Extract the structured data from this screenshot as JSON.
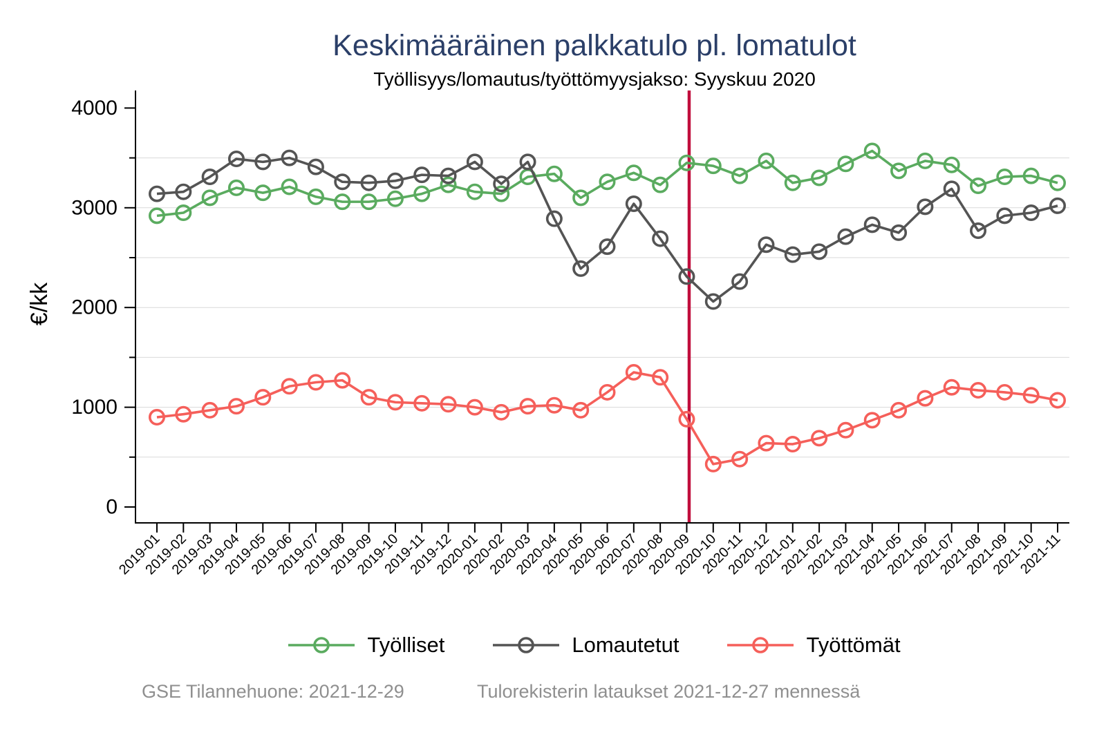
{
  "title": "Keskimääräinen palkkatulo pl. lomatulot",
  "subtitle": "Työllisyys/lomautus/työttömyysjakso: Syyskuu 2020",
  "footer": {
    "left": "GSE Tilannehuone: 2021-12-29",
    "right": "Tulorekisterin lataukset 2021-12-27 mennessä"
  },
  "chart_data": {
    "type": "line",
    "title": "Keskimääräinen palkkatulo pl. lomatulot",
    "subtitle": "Työllisyys/lomautus/työttömyysjakso: Syyskuu 2020",
    "ylabel": "€/kk",
    "xlabel": "",
    "ylim": [
      0,
      4000
    ],
    "ytick_major": [
      0,
      1000,
      2000,
      3000,
      4000
    ],
    "ytick_minor": [
      500,
      1500,
      2500,
      3500
    ],
    "grid": true,
    "gridline_values": [
      500,
      1000,
      1500,
      2000,
      2500,
      3000,
      3500
    ],
    "legend_position": "bottom",
    "x": [
      "2019-01",
      "2019-02",
      "2019-03",
      "2019-04",
      "2019-05",
      "2019-06",
      "2019-07",
      "2019-08",
      "2019-09",
      "2019-10",
      "2019-11",
      "2019-12",
      "2020-01",
      "2020-02",
      "2020-03",
      "2020-04",
      "2020-05",
      "2020-06",
      "2020-07",
      "2020-08",
      "2020-09",
      "2020-10",
      "2020-11",
      "2020-12",
      "2021-01",
      "2021-02",
      "2021-03",
      "2021-04",
      "2021-05",
      "2021-06",
      "2021-07",
      "2021-08",
      "2021-09",
      "2021-10",
      "2021-11"
    ],
    "series": [
      {
        "name": "Työlliset",
        "color": "#5aab5f",
        "values": [
          2920,
          2950,
          3100,
          3200,
          3150,
          3210,
          3110,
          3060,
          3060,
          3090,
          3140,
          3230,
          3160,
          3140,
          3310,
          3340,
          3100,
          3260,
          3350,
          3230,
          3450,
          3420,
          3320,
          3470,
          3250,
          3300,
          3440,
          3570,
          3370,
          3470,
          3430,
          3220,
          3310,
          3320,
          3250
        ]
      },
      {
        "name": "Lomautetut",
        "color": "#545454",
        "values": [
          3140,
          3160,
          3310,
          3490,
          3460,
          3500,
          3410,
          3260,
          3250,
          3270,
          3330,
          3320,
          3460,
          3240,
          3460,
          2890,
          2390,
          2610,
          3040,
          2690,
          2310,
          2060,
          2260,
          2630,
          2530,
          2560,
          2710,
          2830,
          2750,
          3010,
          3190,
          2770,
          2920,
          2950,
          3020
        ]
      },
      {
        "name": "Työttömät",
        "color": "#f55f5a",
        "values": [
          900,
          930,
          970,
          1010,
          1100,
          1210,
          1250,
          1270,
          1100,
          1050,
          1040,
          1030,
          1000,
          950,
          1010,
          1020,
          970,
          1150,
          1350,
          1300,
          880,
          430,
          480,
          640,
          630,
          690,
          770,
          870,
          970,
          1090,
          1200,
          1170,
          1150,
          1120,
          1070
        ]
      }
    ],
    "vline": {
      "x": "2020-09",
      "color": "#c00d3c"
    }
  }
}
